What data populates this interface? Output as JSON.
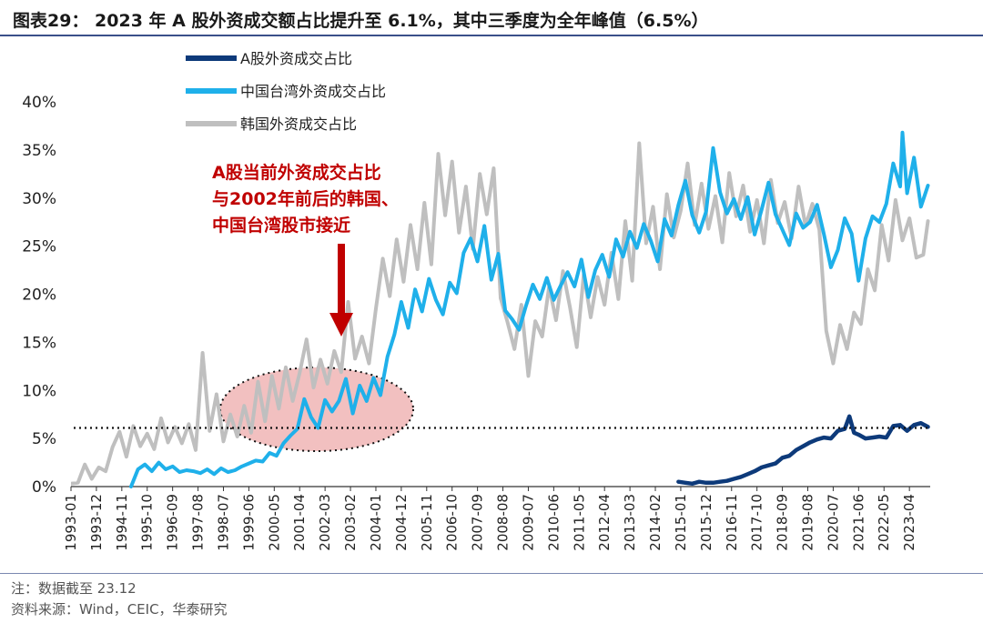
{
  "title": "图表29： 2023 年 A 股外资成交额占比提升至 6.1%，其中三季度为全年峰值（6.5%）",
  "note": "注：数据截至 23.12",
  "source": "资料来源：Wind，CEIC，华泰研究",
  "chart_data": {
    "type": "line",
    "x_ticks": [
      "1993-01",
      "1993-12",
      "1994-11",
      "1995-10",
      "1996-09",
      "1997-08",
      "1998-07",
      "1999-06",
      "2000-05",
      "2001-04",
      "2002-03",
      "2003-02",
      "2004-01",
      "2004-12",
      "2005-11",
      "2006-10",
      "2007-09",
      "2008-08",
      "2009-07",
      "2010-06",
      "2011-05",
      "2012-04",
      "2013-03",
      "2014-02",
      "2015-01",
      "2015-12",
      "2016-11",
      "2017-10",
      "2018-09",
      "2019-08",
      "2020-07",
      "2021-06",
      "2022-05",
      "2023-04"
    ],
    "y_ticks": [
      "0%",
      "5%",
      "10%",
      "15%",
      "20%",
      "25%",
      "30%",
      "35%",
      "40%"
    ],
    "ylim": [
      0,
      40
    ],
    "y_unit": "%",
    "reference_line": 6.1,
    "annotation": [
      "A股当前外资成交占比",
      "与2002年前后的韩国、",
      "中国台湾股市接近"
    ],
    "colors": {
      "a_share": "#0d3a7a",
      "taiwan": "#1fb0ea",
      "korea": "#bfbfbf",
      "arrow": "#c00000",
      "ellipse_fill": "#f2c0c0",
      "ellipse_stroke": "#111111"
    },
    "series": [
      {
        "name": "A股外资成交占比",
        "key": "a_share",
        "points": [
          [
            "2014-12",
            0.5
          ],
          [
            "2015-03",
            0.4
          ],
          [
            "2015-06",
            0.3
          ],
          [
            "2015-09",
            0.5
          ],
          [
            "2015-12",
            0.4
          ],
          [
            "2016-03",
            0.4
          ],
          [
            "2016-06",
            0.5
          ],
          [
            "2016-09",
            0.6
          ],
          [
            "2016-12",
            0.8
          ],
          [
            "2017-03",
            1.0
          ],
          [
            "2017-06",
            1.3
          ],
          [
            "2017-09",
            1.6
          ],
          [
            "2017-12",
            2.0
          ],
          [
            "2018-03",
            2.2
          ],
          [
            "2018-06",
            2.4
          ],
          [
            "2018-09",
            3.0
          ],
          [
            "2018-12",
            3.2
          ],
          [
            "2019-03",
            3.8
          ],
          [
            "2019-06",
            4.2
          ],
          [
            "2019-09",
            4.6
          ],
          [
            "2019-12",
            4.9
          ],
          [
            "2020-03",
            5.1
          ],
          [
            "2020-06",
            5.0
          ],
          [
            "2020-09",
            5.8
          ],
          [
            "2020-12",
            6.0
          ],
          [
            "2021-02",
            7.3
          ],
          [
            "2021-04",
            5.6
          ],
          [
            "2021-06",
            5.4
          ],
          [
            "2021-09",
            5.0
          ],
          [
            "2021-12",
            5.1
          ],
          [
            "2022-03",
            5.2
          ],
          [
            "2022-06",
            5.1
          ],
          [
            "2022-09",
            6.3
          ],
          [
            "2022-12",
            6.4
          ],
          [
            "2023-03",
            5.8
          ],
          [
            "2023-06",
            6.4
          ],
          [
            "2023-09",
            6.6
          ],
          [
            "2023-12",
            6.2
          ]
        ]
      },
      {
        "name": "中国台湾外资成交占比",
        "key": "taiwan",
        "points": [
          [
            "1995-03",
            0.0
          ],
          [
            "1995-06",
            1.8
          ],
          [
            "1995-09",
            2.3
          ],
          [
            "1995-12",
            1.6
          ],
          [
            "1996-03",
            2.5
          ],
          [
            "1996-06",
            1.8
          ],
          [
            "1996-09",
            2.1
          ],
          [
            "1996-12",
            1.5
          ],
          [
            "1997-03",
            1.7
          ],
          [
            "1997-06",
            1.6
          ],
          [
            "1997-09",
            1.4
          ],
          [
            "1997-12",
            1.8
          ],
          [
            "1998-03",
            1.3
          ],
          [
            "1998-06",
            1.9
          ],
          [
            "1998-09",
            1.5
          ],
          [
            "1998-12",
            1.7
          ],
          [
            "1999-03",
            2.1
          ],
          [
            "1999-06",
            2.4
          ],
          [
            "1999-09",
            2.7
          ],
          [
            "1999-12",
            2.6
          ],
          [
            "2000-03",
            3.5
          ],
          [
            "2000-06",
            3.2
          ],
          [
            "2000-09",
            4.5
          ],
          [
            "2000-12",
            5.3
          ],
          [
            "2001-03",
            6.0
          ],
          [
            "2001-06",
            9.1
          ],
          [
            "2001-09",
            7.2
          ],
          [
            "2001-12",
            6.1
          ],
          [
            "2002-03",
            9.0
          ],
          [
            "2002-06",
            7.8
          ],
          [
            "2002-09",
            8.9
          ],
          [
            "2002-12",
            11.2
          ],
          [
            "2003-03",
            7.6
          ],
          [
            "2003-06",
            10.5
          ],
          [
            "2003-09",
            8.9
          ],
          [
            "2003-12",
            11.3
          ],
          [
            "2004-03",
            9.5
          ],
          [
            "2004-06",
            13.5
          ],
          [
            "2004-09",
            15.8
          ],
          [
            "2004-12",
            19.2
          ],
          [
            "2005-03",
            16.5
          ],
          [
            "2005-06",
            20.5
          ],
          [
            "2005-09",
            18.2
          ],
          [
            "2005-12",
            21.6
          ],
          [
            "2006-03",
            19.4
          ],
          [
            "2006-06",
            17.9
          ],
          [
            "2006-09",
            21.2
          ],
          [
            "2006-12",
            20.1
          ],
          [
            "2007-03",
            24.3
          ],
          [
            "2007-06",
            25.8
          ],
          [
            "2007-09",
            23.4
          ],
          [
            "2007-12",
            27.1
          ],
          [
            "2008-03",
            21.5
          ],
          [
            "2008-06",
            24.2
          ],
          [
            "2008-09",
            18.3
          ],
          [
            "2008-12",
            17.4
          ],
          [
            "2009-03",
            16.3
          ],
          [
            "2009-06",
            18.8
          ],
          [
            "2009-09",
            21.0
          ],
          [
            "2009-12",
            19.5
          ],
          [
            "2010-03",
            21.7
          ],
          [
            "2010-06",
            19.4
          ],
          [
            "2010-09",
            20.9
          ],
          [
            "2010-12",
            22.3
          ],
          [
            "2011-03",
            20.8
          ],
          [
            "2011-06",
            23.6
          ],
          [
            "2011-09",
            19.7
          ],
          [
            "2011-12",
            22.5
          ],
          [
            "2012-03",
            24.1
          ],
          [
            "2012-06",
            21.8
          ],
          [
            "2012-09",
            25.7
          ],
          [
            "2012-12",
            23.9
          ],
          [
            "2013-03",
            26.5
          ],
          [
            "2013-06",
            24.8
          ],
          [
            "2013-09",
            27.3
          ],
          [
            "2013-12",
            25.6
          ],
          [
            "2014-03",
            23.4
          ],
          [
            "2014-06",
            27.8
          ],
          [
            "2014-09",
            26.1
          ],
          [
            "2014-12",
            29.3
          ],
          [
            "2015-03",
            31.8
          ],
          [
            "2015-06",
            28.2
          ],
          [
            "2015-09",
            26.4
          ],
          [
            "2015-12",
            28.6
          ],
          [
            "2016-03",
            35.2
          ],
          [
            "2016-06",
            30.6
          ],
          [
            "2016-09",
            28.4
          ],
          [
            "2016-12",
            29.9
          ],
          [
            "2017-03",
            27.8
          ],
          [
            "2017-06",
            30.1
          ],
          [
            "2017-09",
            26.2
          ],
          [
            "2017-12",
            28.8
          ],
          [
            "2018-03",
            31.6
          ],
          [
            "2018-06",
            28.3
          ],
          [
            "2018-09",
            26.7
          ],
          [
            "2018-12",
            25.1
          ],
          [
            "2019-03",
            28.4
          ],
          [
            "2019-06",
            26.9
          ],
          [
            "2019-09",
            27.5
          ],
          [
            "2019-12",
            29.3
          ],
          [
            "2020-03",
            26.2
          ],
          [
            "2020-06",
            22.8
          ],
          [
            "2020-09",
            24.6
          ],
          [
            "2020-12",
            27.9
          ],
          [
            "2021-03",
            26.3
          ],
          [
            "2021-06",
            21.4
          ],
          [
            "2021-09",
            25.8
          ],
          [
            "2021-12",
            28.1
          ],
          [
            "2022-03",
            27.5
          ],
          [
            "2022-06",
            29.4
          ],
          [
            "2022-09",
            33.6
          ],
          [
            "2022-12",
            31.2
          ],
          [
            "2023-01",
            36.8
          ],
          [
            "2023-03",
            30.5
          ],
          [
            "2023-06",
            34.2
          ],
          [
            "2023-09",
            29.1
          ],
          [
            "2023-12",
            31.3
          ]
        ]
      },
      {
        "name": "韩国外资成交占比",
        "key": "korea",
        "points": [
          [
            "1993-01",
            0.3
          ],
          [
            "1993-04",
            0.4
          ],
          [
            "1993-07",
            2.3
          ],
          [
            "1993-10",
            0.8
          ],
          [
            "1994-01",
            2.0
          ],
          [
            "1994-04",
            1.6
          ],
          [
            "1994-07",
            4.1
          ],
          [
            "1994-10",
            5.7
          ],
          [
            "1995-01",
            3.1
          ],
          [
            "1995-04",
            6.3
          ],
          [
            "1995-07",
            4.2
          ],
          [
            "1995-10",
            5.5
          ],
          [
            "1996-01",
            3.9
          ],
          [
            "1996-04",
            7.1
          ],
          [
            "1996-07",
            4.6
          ],
          [
            "1996-10",
            6.2
          ],
          [
            "1997-01",
            4.5
          ],
          [
            "1997-04",
            6.5
          ],
          [
            "1997-07",
            3.8
          ],
          [
            "1997-10",
            13.9
          ],
          [
            "1998-01",
            5.8
          ],
          [
            "1998-04",
            9.6
          ],
          [
            "1998-07",
            4.7
          ],
          [
            "1998-10",
            7.5
          ],
          [
            "1999-01",
            5.2
          ],
          [
            "1999-04",
            8.4
          ],
          [
            "1999-07",
            5.6
          ],
          [
            "1999-10",
            10.9
          ],
          [
            "2000-01",
            6.8
          ],
          [
            "2000-04",
            11.5
          ],
          [
            "2000-07",
            8.1
          ],
          [
            "2000-10",
            12.4
          ],
          [
            "2001-01",
            8.9
          ],
          [
            "2001-04",
            11.8
          ],
          [
            "2001-07",
            15.3
          ],
          [
            "2001-10",
            10.3
          ],
          [
            "2002-01",
            13.2
          ],
          [
            "2002-04",
            10.7
          ],
          [
            "2002-07",
            14.1
          ],
          [
            "2002-10",
            11.9
          ],
          [
            "2003-01",
            19.2
          ],
          [
            "2003-04",
            13.3
          ],
          [
            "2003-07",
            15.6
          ],
          [
            "2003-10",
            12.8
          ],
          [
            "2004-01",
            18.5
          ],
          [
            "2004-04",
            23.7
          ],
          [
            "2004-07",
            19.8
          ],
          [
            "2004-10",
            25.7
          ],
          [
            "2005-01",
            21.3
          ],
          [
            "2005-04",
            27.2
          ],
          [
            "2005-07",
            22.6
          ],
          [
            "2005-10",
            29.5
          ],
          [
            "2006-01",
            23.1
          ],
          [
            "2006-04",
            34.6
          ],
          [
            "2006-07",
            28.2
          ],
          [
            "2006-10",
            33.8
          ],
          [
            "2007-01",
            26.4
          ],
          [
            "2007-04",
            31.2
          ],
          [
            "2007-07",
            24.7
          ],
          [
            "2007-10",
            32.5
          ],
          [
            "2008-01",
            28.3
          ],
          [
            "2008-04",
            33.1
          ],
          [
            "2008-07",
            19.6
          ],
          [
            "2008-10",
            17.1
          ],
          [
            "2009-01",
            14.3
          ],
          [
            "2009-04",
            18.9
          ],
          [
            "2009-07",
            11.5
          ],
          [
            "2009-10",
            17.2
          ],
          [
            "2010-01",
            15.6
          ],
          [
            "2010-04",
            20.8
          ],
          [
            "2010-07",
            17.3
          ],
          [
            "2010-10",
            22.4
          ],
          [
            "2011-01",
            18.7
          ],
          [
            "2011-04",
            14.5
          ],
          [
            "2011-07",
            22.1
          ],
          [
            "2011-10",
            17.6
          ],
          [
            "2012-01",
            21.8
          ],
          [
            "2012-04",
            18.9
          ],
          [
            "2012-07",
            24.3
          ],
          [
            "2012-10",
            19.5
          ],
          [
            "2013-01",
            27.6
          ],
          [
            "2013-04",
            21.4
          ],
          [
            "2013-07",
            35.7
          ],
          [
            "2013-10",
            25.3
          ],
          [
            "2014-01",
            29.1
          ],
          [
            "2014-04",
            22.6
          ],
          [
            "2014-07",
            30.4
          ],
          [
            "2014-10",
            25.9
          ],
          [
            "2015-01",
            28.7
          ],
          [
            "2015-04",
            33.6
          ],
          [
            "2015-07",
            27.2
          ],
          [
            "2015-10",
            31.5
          ],
          [
            "2016-01",
            26.8
          ],
          [
            "2016-04",
            30.2
          ],
          [
            "2016-07",
            25.4
          ],
          [
            "2016-10",
            32.6
          ],
          [
            "2017-01",
            28.1
          ],
          [
            "2017-04",
            31.3
          ],
          [
            "2017-07",
            26.5
          ],
          [
            "2017-10",
            29.8
          ],
          [
            "2018-01",
            25.3
          ],
          [
            "2018-04",
            31.9
          ],
          [
            "2018-07",
            27.4
          ],
          [
            "2018-10",
            29.6
          ],
          [
            "2019-01",
            25.8
          ],
          [
            "2019-04",
            31.2
          ],
          [
            "2019-07",
            27.1
          ],
          [
            "2019-10",
            29.4
          ],
          [
            "2020-01",
            26.7
          ],
          [
            "2020-04",
            16.2
          ],
          [
            "2020-07",
            12.8
          ],
          [
            "2020-10",
            16.8
          ],
          [
            "2021-01",
            14.3
          ],
          [
            "2021-04",
            18.1
          ],
          [
            "2021-07",
            16.9
          ],
          [
            "2021-10",
            22.6
          ],
          [
            "2022-01",
            20.4
          ],
          [
            "2022-04",
            27.2
          ],
          [
            "2022-07",
            23.5
          ],
          [
            "2022-10",
            29.8
          ],
          [
            "2023-01",
            25.6
          ],
          [
            "2023-04",
            27.9
          ],
          [
            "2023-07",
            23.8
          ],
          [
            "2023-10",
            24.1
          ],
          [
            "2023-12",
            27.6
          ]
        ]
      }
    ]
  }
}
